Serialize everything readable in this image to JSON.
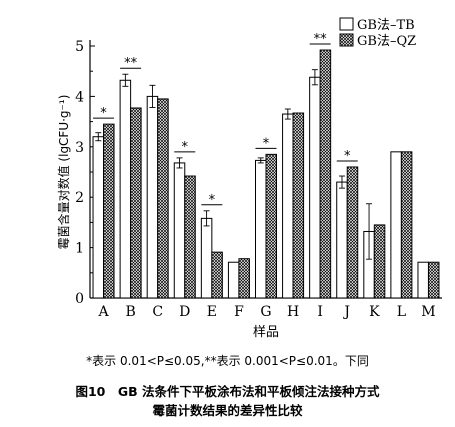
{
  "chart_data": {
    "type": "bar",
    "categories": [
      "A",
      "B",
      "C",
      "D",
      "E",
      "F",
      "G",
      "H",
      "I",
      "J",
      "K",
      "L",
      "M"
    ],
    "series": [
      {
        "name": "GB法–TB",
        "values": [
          3.2,
          4.32,
          4.0,
          2.68,
          1.58,
          0.71,
          2.73,
          3.65,
          4.38,
          2.3,
          1.32,
          2.9,
          0.71
        ],
        "error": [
          0.08,
          0.12,
          0.22,
          0.1,
          0.15,
          0.0,
          0.05,
          0.1,
          0.15,
          0.12,
          0.55,
          0.0,
          0.0
        ],
        "fill": "#ffffff"
      },
      {
        "name": "GB法–QZ",
        "values": [
          3.45,
          3.77,
          3.95,
          2.42,
          0.91,
          0.78,
          2.85,
          3.67,
          4.92,
          2.6,
          1.45,
          2.9,
          0.71
        ],
        "fill": "crosshatch"
      }
    ],
    "significance": [
      {
        "category": "A",
        "label": "*"
      },
      {
        "category": "B",
        "label": "**"
      },
      {
        "category": "D",
        "label": "*"
      },
      {
        "category": "E",
        "label": "*"
      },
      {
        "category": "G",
        "label": "*"
      },
      {
        "category": "I",
        "label": "**"
      },
      {
        "category": "J",
        "label": "*"
      }
    ],
    "xlabel": "样品",
    "ylabel": "霉菌含量对数值 (lgCFU·g⁻¹)",
    "ylim": [
      0,
      5
    ],
    "yticks": [
      "0",
      "1",
      "2",
      "3",
      "4",
      "5"
    ],
    "legend": "top-right",
    "grid": false
  },
  "footnote": "*表示 0.01<P≤0.05,**表示 0.001<P≤0.01。下同",
  "caption": {
    "line1": "图10　GB 法条件下平板涂布法和平板倾注法接种方式",
    "line2": "霉菌计数结果的差异性比较"
  }
}
